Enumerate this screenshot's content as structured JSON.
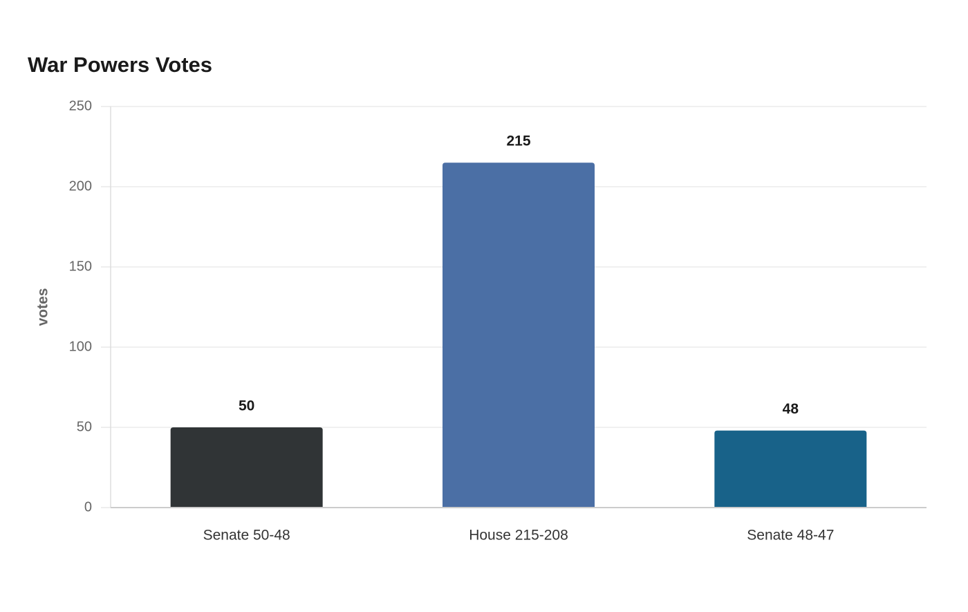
{
  "chart_data": {
    "type": "bar",
    "title": "War Powers Votes",
    "y_label": "votes",
    "categories": [
      "Senate 50-48",
      "House 215-208",
      "Senate 48-47"
    ],
    "values": [
      50,
      215,
      48
    ],
    "colors": [
      "#303436",
      "#4b6fa5",
      "#186289"
    ],
    "ylim": [
      0,
      250
    ],
    "yticks": [
      0,
      50,
      100,
      150,
      200,
      250
    ],
    "grid": true
  }
}
